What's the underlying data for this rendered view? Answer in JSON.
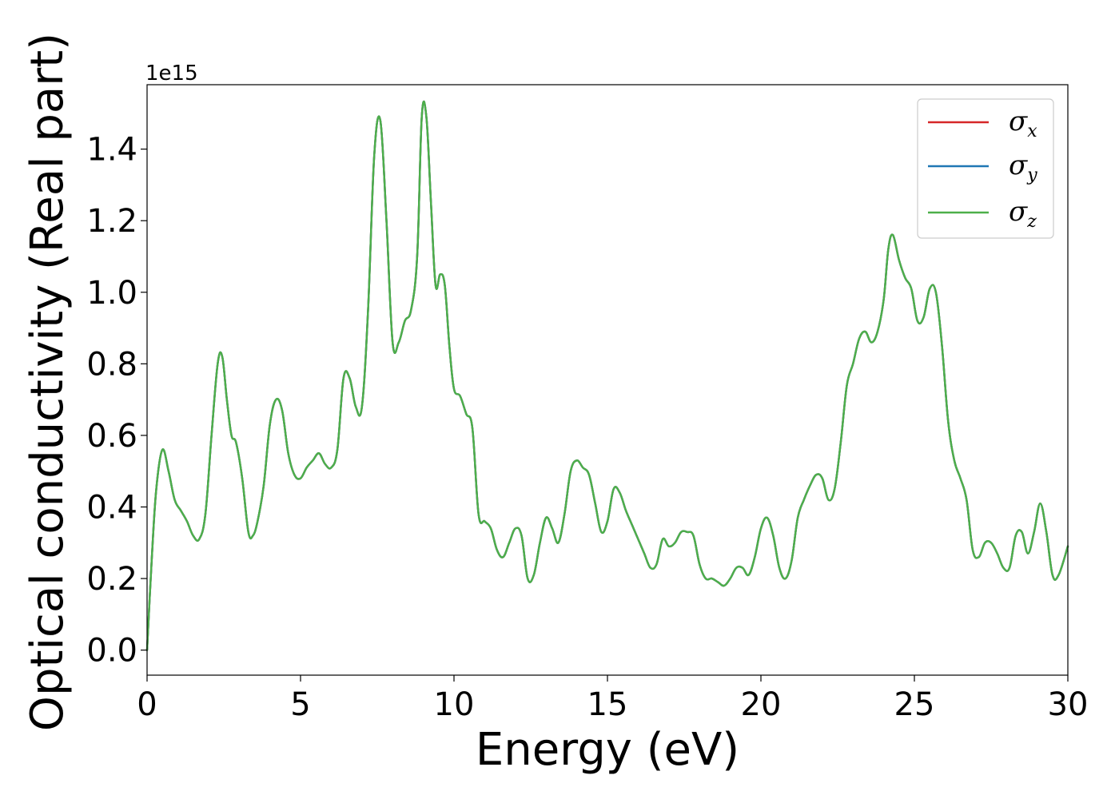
{
  "chart_data": {
    "type": "line",
    "xlabel": "Energy (eV)",
    "ylabel": "Optical conductivity (Real part)",
    "y_offset_text": "1e15",
    "xlim": [
      0,
      30
    ],
    "ylim": [
      -0.07,
      1.58
    ],
    "xticks": [
      0,
      5,
      10,
      15,
      20,
      25,
      30
    ],
    "xtick_labels": [
      "0",
      "5",
      "10",
      "15",
      "20",
      "25",
      "30"
    ],
    "yticks": [
      0.0,
      0.2,
      0.4,
      0.6,
      0.8,
      1.0,
      1.2,
      1.4
    ],
    "ytick_labels": [
      "0.0",
      "0.2",
      "0.4",
      "0.6",
      "0.8",
      "1.0",
      "1.2",
      "1.4"
    ],
    "grid": false,
    "legend_position": "top-right",
    "x": [
      0,
      0.15,
      0.3,
      0.5,
      0.7,
      0.9,
      1.1,
      1.3,
      1.5,
      1.7,
      1.9,
      2.1,
      2.3,
      2.45,
      2.6,
      2.75,
      2.9,
      3.1,
      3.3,
      3.45,
      3.6,
      3.8,
      4.0,
      4.2,
      4.4,
      4.6,
      4.8,
      5.0,
      5.2,
      5.4,
      5.6,
      5.8,
      6.0,
      6.2,
      6.4,
      6.6,
      6.8,
      7.0,
      7.2,
      7.4,
      7.6,
      7.8,
      8.0,
      8.2,
      8.4,
      8.6,
      8.8,
      8.95,
      9.1,
      9.25,
      9.4,
      9.55,
      9.7,
      9.85,
      10.0,
      10.2,
      10.4,
      10.6,
      10.8,
      11.0,
      11.2,
      11.4,
      11.6,
      11.8,
      12.0,
      12.2,
      12.4,
      12.6,
      12.8,
      13.0,
      13.2,
      13.4,
      13.6,
      13.8,
      14.0,
      14.2,
      14.4,
      14.6,
      14.8,
      15.0,
      15.2,
      15.4,
      15.6,
      15.8,
      16.0,
      16.2,
      16.4,
      16.6,
      16.8,
      17.0,
      17.2,
      17.4,
      17.6,
      17.8,
      18.0,
      18.2,
      18.4,
      18.6,
      18.8,
      19.0,
      19.2,
      19.4,
      19.6,
      19.8,
      20.0,
      20.2,
      20.4,
      20.6,
      20.8,
      21.0,
      21.2,
      21.4,
      21.6,
      21.8,
      22.0,
      22.2,
      22.4,
      22.6,
      22.8,
      23.0,
      23.2,
      23.4,
      23.6,
      23.8,
      24.0,
      24.15,
      24.3,
      24.5,
      24.7,
      24.9,
      25.1,
      25.3,
      25.5,
      25.7,
      25.9,
      26.1,
      26.3,
      26.5,
      26.7,
      26.9,
      27.1,
      27.3,
      27.5,
      27.7,
      27.9,
      28.1,
      28.3,
      28.5,
      28.7,
      28.9,
      29.1,
      29.3,
      29.5,
      29.7,
      30.0
    ],
    "series": [
      {
        "name": "σx",
        "color": "#d62728",
        "values": [
          0.0,
          0.25,
          0.45,
          0.56,
          0.5,
          0.42,
          0.39,
          0.36,
          0.32,
          0.31,
          0.38,
          0.6,
          0.8,
          0.82,
          0.7,
          0.6,
          0.58,
          0.48,
          0.33,
          0.32,
          0.36,
          0.46,
          0.63,
          0.7,
          0.67,
          0.55,
          0.49,
          0.48,
          0.51,
          0.53,
          0.55,
          0.52,
          0.51,
          0.56,
          0.76,
          0.76,
          0.68,
          0.68,
          0.95,
          1.38,
          1.48,
          1.2,
          0.86,
          0.86,
          0.92,
          0.95,
          1.1,
          1.49,
          1.49,
          1.25,
          1.02,
          1.05,
          1.02,
          0.85,
          0.73,
          0.71,
          0.66,
          0.62,
          0.38,
          0.36,
          0.34,
          0.28,
          0.26,
          0.3,
          0.34,
          0.32,
          0.2,
          0.21,
          0.3,
          0.37,
          0.34,
          0.3,
          0.38,
          0.5,
          0.53,
          0.51,
          0.49,
          0.41,
          0.33,
          0.36,
          0.45,
          0.44,
          0.39,
          0.35,
          0.31,
          0.27,
          0.23,
          0.24,
          0.31,
          0.29,
          0.3,
          0.33,
          0.33,
          0.32,
          0.24,
          0.2,
          0.2,
          0.19,
          0.18,
          0.2,
          0.23,
          0.23,
          0.21,
          0.26,
          0.34,
          0.37,
          0.32,
          0.23,
          0.2,
          0.25,
          0.37,
          0.42,
          0.46,
          0.49,
          0.48,
          0.42,
          0.45,
          0.58,
          0.74,
          0.8,
          0.87,
          0.89,
          0.86,
          0.89,
          0.98,
          1.12,
          1.16,
          1.09,
          1.04,
          1.01,
          0.92,
          0.93,
          1.01,
          1.0,
          0.85,
          0.64,
          0.53,
          0.48,
          0.42,
          0.28,
          0.26,
          0.3,
          0.3,
          0.27,
          0.23,
          0.23,
          0.32,
          0.33,
          0.27,
          0.33,
          0.41,
          0.33,
          0.21,
          0.21,
          0.29
        ]
      },
      {
        "name": "σy",
        "color": "#1f77b4",
        "values": [
          0.0,
          0.25,
          0.45,
          0.56,
          0.5,
          0.42,
          0.39,
          0.36,
          0.32,
          0.31,
          0.38,
          0.6,
          0.8,
          0.82,
          0.7,
          0.6,
          0.58,
          0.48,
          0.33,
          0.32,
          0.36,
          0.46,
          0.63,
          0.7,
          0.67,
          0.55,
          0.49,
          0.48,
          0.51,
          0.53,
          0.55,
          0.52,
          0.51,
          0.56,
          0.76,
          0.76,
          0.68,
          0.68,
          0.95,
          1.38,
          1.48,
          1.2,
          0.86,
          0.86,
          0.92,
          0.95,
          1.1,
          1.49,
          1.49,
          1.25,
          1.02,
          1.05,
          1.02,
          0.85,
          0.73,
          0.71,
          0.66,
          0.62,
          0.38,
          0.36,
          0.34,
          0.28,
          0.26,
          0.3,
          0.34,
          0.32,
          0.2,
          0.21,
          0.3,
          0.37,
          0.34,
          0.3,
          0.38,
          0.5,
          0.53,
          0.51,
          0.49,
          0.41,
          0.33,
          0.36,
          0.45,
          0.44,
          0.39,
          0.35,
          0.31,
          0.27,
          0.23,
          0.24,
          0.31,
          0.29,
          0.3,
          0.33,
          0.33,
          0.32,
          0.24,
          0.2,
          0.2,
          0.19,
          0.18,
          0.2,
          0.23,
          0.23,
          0.21,
          0.26,
          0.34,
          0.37,
          0.32,
          0.23,
          0.2,
          0.25,
          0.37,
          0.42,
          0.46,
          0.49,
          0.48,
          0.42,
          0.45,
          0.58,
          0.74,
          0.8,
          0.87,
          0.89,
          0.86,
          0.89,
          0.98,
          1.12,
          1.16,
          1.09,
          1.04,
          1.01,
          0.92,
          0.93,
          1.01,
          1.0,
          0.85,
          0.64,
          0.53,
          0.48,
          0.42,
          0.28,
          0.26,
          0.3,
          0.3,
          0.27,
          0.23,
          0.23,
          0.32,
          0.33,
          0.27,
          0.33,
          0.41,
          0.33,
          0.21,
          0.21,
          0.29
        ]
      },
      {
        "name": "σz",
        "color": "#4daf4a",
        "values": [
          0.0,
          0.25,
          0.45,
          0.56,
          0.5,
          0.42,
          0.39,
          0.36,
          0.32,
          0.31,
          0.38,
          0.6,
          0.8,
          0.82,
          0.7,
          0.6,
          0.58,
          0.48,
          0.33,
          0.32,
          0.36,
          0.46,
          0.63,
          0.7,
          0.67,
          0.55,
          0.49,
          0.48,
          0.51,
          0.53,
          0.55,
          0.52,
          0.51,
          0.56,
          0.76,
          0.76,
          0.68,
          0.68,
          0.95,
          1.38,
          1.48,
          1.2,
          0.86,
          0.86,
          0.92,
          0.95,
          1.1,
          1.49,
          1.49,
          1.25,
          1.02,
          1.05,
          1.02,
          0.85,
          0.73,
          0.71,
          0.66,
          0.62,
          0.38,
          0.36,
          0.34,
          0.28,
          0.26,
          0.3,
          0.34,
          0.32,
          0.2,
          0.21,
          0.3,
          0.37,
          0.34,
          0.3,
          0.38,
          0.5,
          0.53,
          0.51,
          0.49,
          0.41,
          0.33,
          0.36,
          0.45,
          0.44,
          0.39,
          0.35,
          0.31,
          0.27,
          0.23,
          0.24,
          0.31,
          0.29,
          0.3,
          0.33,
          0.33,
          0.32,
          0.24,
          0.2,
          0.2,
          0.19,
          0.18,
          0.2,
          0.23,
          0.23,
          0.21,
          0.26,
          0.34,
          0.37,
          0.32,
          0.23,
          0.2,
          0.25,
          0.37,
          0.42,
          0.46,
          0.49,
          0.48,
          0.42,
          0.45,
          0.58,
          0.74,
          0.8,
          0.87,
          0.89,
          0.86,
          0.89,
          0.98,
          1.12,
          1.16,
          1.09,
          1.04,
          1.01,
          0.92,
          0.93,
          1.01,
          1.0,
          0.85,
          0.64,
          0.53,
          0.48,
          0.42,
          0.28,
          0.26,
          0.3,
          0.3,
          0.27,
          0.23,
          0.23,
          0.32,
          0.33,
          0.27,
          0.33,
          0.41,
          0.33,
          0.21,
          0.21,
          0.29
        ]
      }
    ]
  }
}
